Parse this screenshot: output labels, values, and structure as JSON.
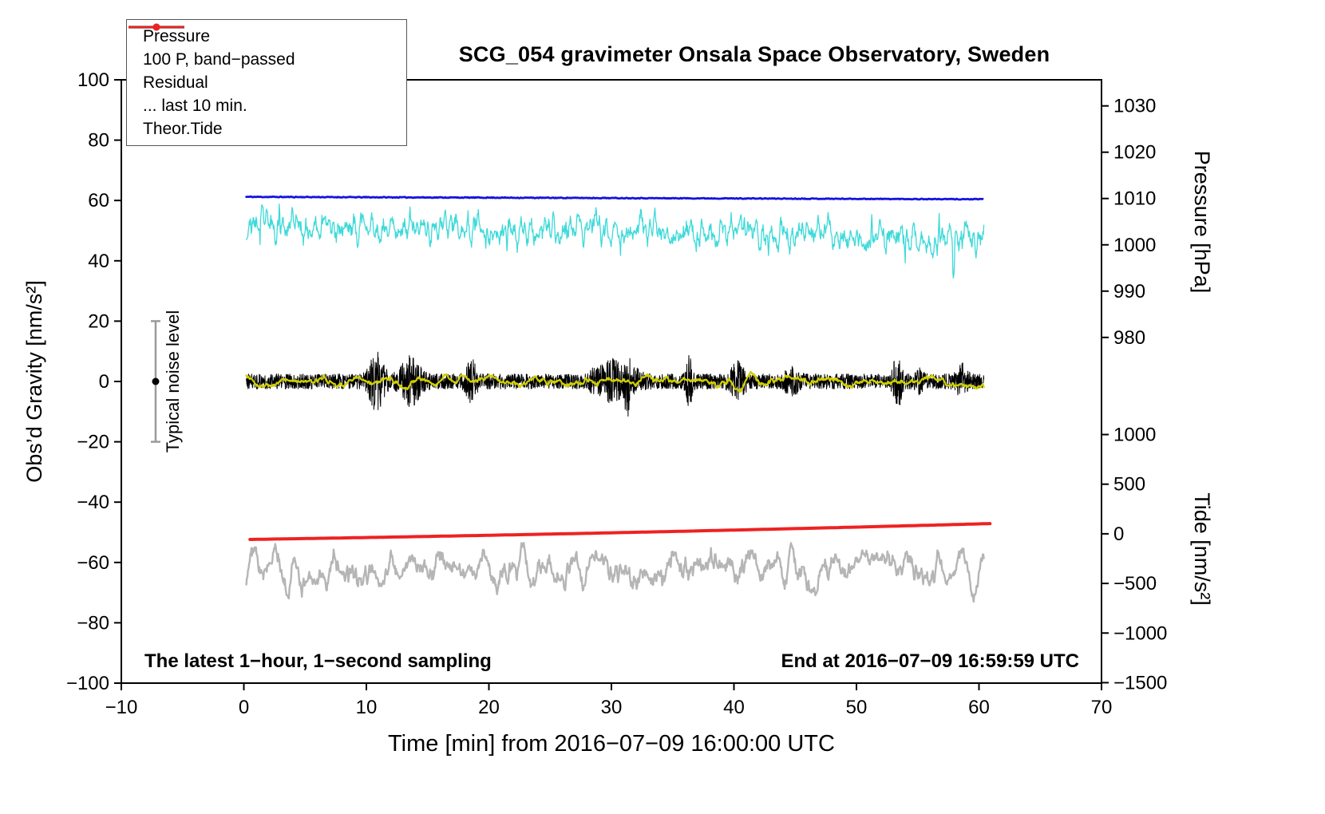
{
  "chart_data": {
    "type": "line",
    "title": "SCG_054 gravimeter Onsala Space Observatory, Sweden",
    "annotations": {
      "bottom_left": "The latest 1−hour, 1−second sampling",
      "bottom_right": "End at 2016−07−09 16:59:59 UTC"
    },
    "axes": {
      "x": {
        "label": "Time [min] from 2016−07−09 16:00:00 UTC",
        "range": [
          -10,
          70
        ],
        "ticks": [
          -10,
          0,
          10,
          20,
          30,
          40,
          50,
          60,
          70
        ]
      },
      "y_left": {
        "label": "Obs’d Gravity [nm/s²]",
        "range": [
          -100,
          100
        ],
        "ticks": [
          -100,
          -80,
          -60,
          -40,
          -20,
          0,
          20,
          40,
          60,
          80,
          100
        ]
      },
      "y_right_pressure": {
        "label": "Pressure [hPa]",
        "ticks": [
          980,
          990,
          1000,
          1010,
          1020,
          1030
        ],
        "map": {
          "v0": 1000,
          "g0": 45.3,
          "g_per_v": 1.535
        }
      },
      "y_right_tide": {
        "label": "Tide [nm/s²]",
        "ticks": [
          -1500,
          -1000,
          -500,
          0,
          500,
          1000
        ],
        "map": {
          "v0": 0,
          "g0": -50.5,
          "g_per_v": 0.0329
        }
      }
    },
    "noise_marker": {
      "label": "Typical noise level",
      "x": -7.2,
      "center": 0,
      "half_range": 20,
      "bar_color": "#9a9a9a",
      "dot_color": "#000000"
    },
    "legend_items": [
      {
        "label": "Pressure",
        "color": "#1414dd",
        "dot": true,
        "lw": 2.5
      },
      {
        "label": "100 P, band−passed",
        "color": "#3fd9d9",
        "dot": true,
        "lw": 2
      },
      {
        "label": "Residual",
        "color": "#000000",
        "dot": false,
        "lw": 3.5
      },
      {
        "label": "... last 10 min.",
        "color": "#b5b5b5",
        "dot": false,
        "lw": 3.5
      },
      {
        "label": "Theor.Tide",
        "color": "#ee2222",
        "dot": true,
        "lw": 2.5
      }
    ],
    "series": [
      {
        "id": "last-10-min",
        "kind": "wave",
        "color": "#b5b5b5",
        "width": 2.4,
        "x_start": 0.2,
        "x_end": 60.4,
        "base": -62,
        "amp": 3.3,
        "smooth": 6,
        "dip_count": 9,
        "dip_amp": 6,
        "seed": 53,
        "summary": "residual of last 10 min, ~-350 nT tide-axis, mean -62 nm/s2 on gravity axis"
      },
      {
        "id": "theor-tide",
        "kind": "poly",
        "color": "#ee2222",
        "width": 4,
        "x_start": 0.5,
        "x_end": 60.9,
        "coef": [
          -52.4,
          0.0625,
          0.0004
        ],
        "summary": "smooth theoretical tide rising from -52.4 to -47.2 nm/s2 (about -55 to +100 on tide axis)"
      },
      {
        "id": "band-passed",
        "kind": "band",
        "color": "#3fd9d9",
        "width": 1.3,
        "x_start": 0.2,
        "x_end": 60.4,
        "base_start": 51.8,
        "base_end": 47.6,
        "amp": 2.6,
        "smooth": 2,
        "spike_count": 16,
        "spike_amp": 9,
        "seed": 23,
        "summary": "100x band-passed pressure, noisy around 50 nm/s2, spikes 37..64"
      },
      {
        "id": "pressure",
        "kind": "trend",
        "color": "#1414dd",
        "width": 2.8,
        "x_start": 0.2,
        "x_end": 60.3,
        "y_start": 61.2,
        "y_end": 60.4,
        "noise": 0.13,
        "seed": 11,
        "summary": "air pressure ~1010 hPa, nearly constant, slight decrease"
      },
      {
        "id": "residual",
        "kind": "burst",
        "color": "#000000",
        "width": 1,
        "x_start": 0.2,
        "x_end": 60.4,
        "base": 0,
        "amp": 2.5,
        "burst_count": 13,
        "burst_amp": 6.5,
        "seed": 37,
        "summary": "gravity residual centered at 0, quiet band ±3 with bursts to ±13"
      },
      {
        "id": "residual-smoothed",
        "kind": "wave",
        "color": "#cfcf00",
        "width": 2.2,
        "x_start": 0.2,
        "x_end": 60.4,
        "base": 0,
        "amp": 1.0,
        "smooth": 10,
        "dip_count": 0,
        "dip_amp": 0,
        "seed": 41,
        "summary": "smoothed residual, slow wiggle ±2 around 0 (yellow overlay, not in legend)"
      }
    ]
  }
}
